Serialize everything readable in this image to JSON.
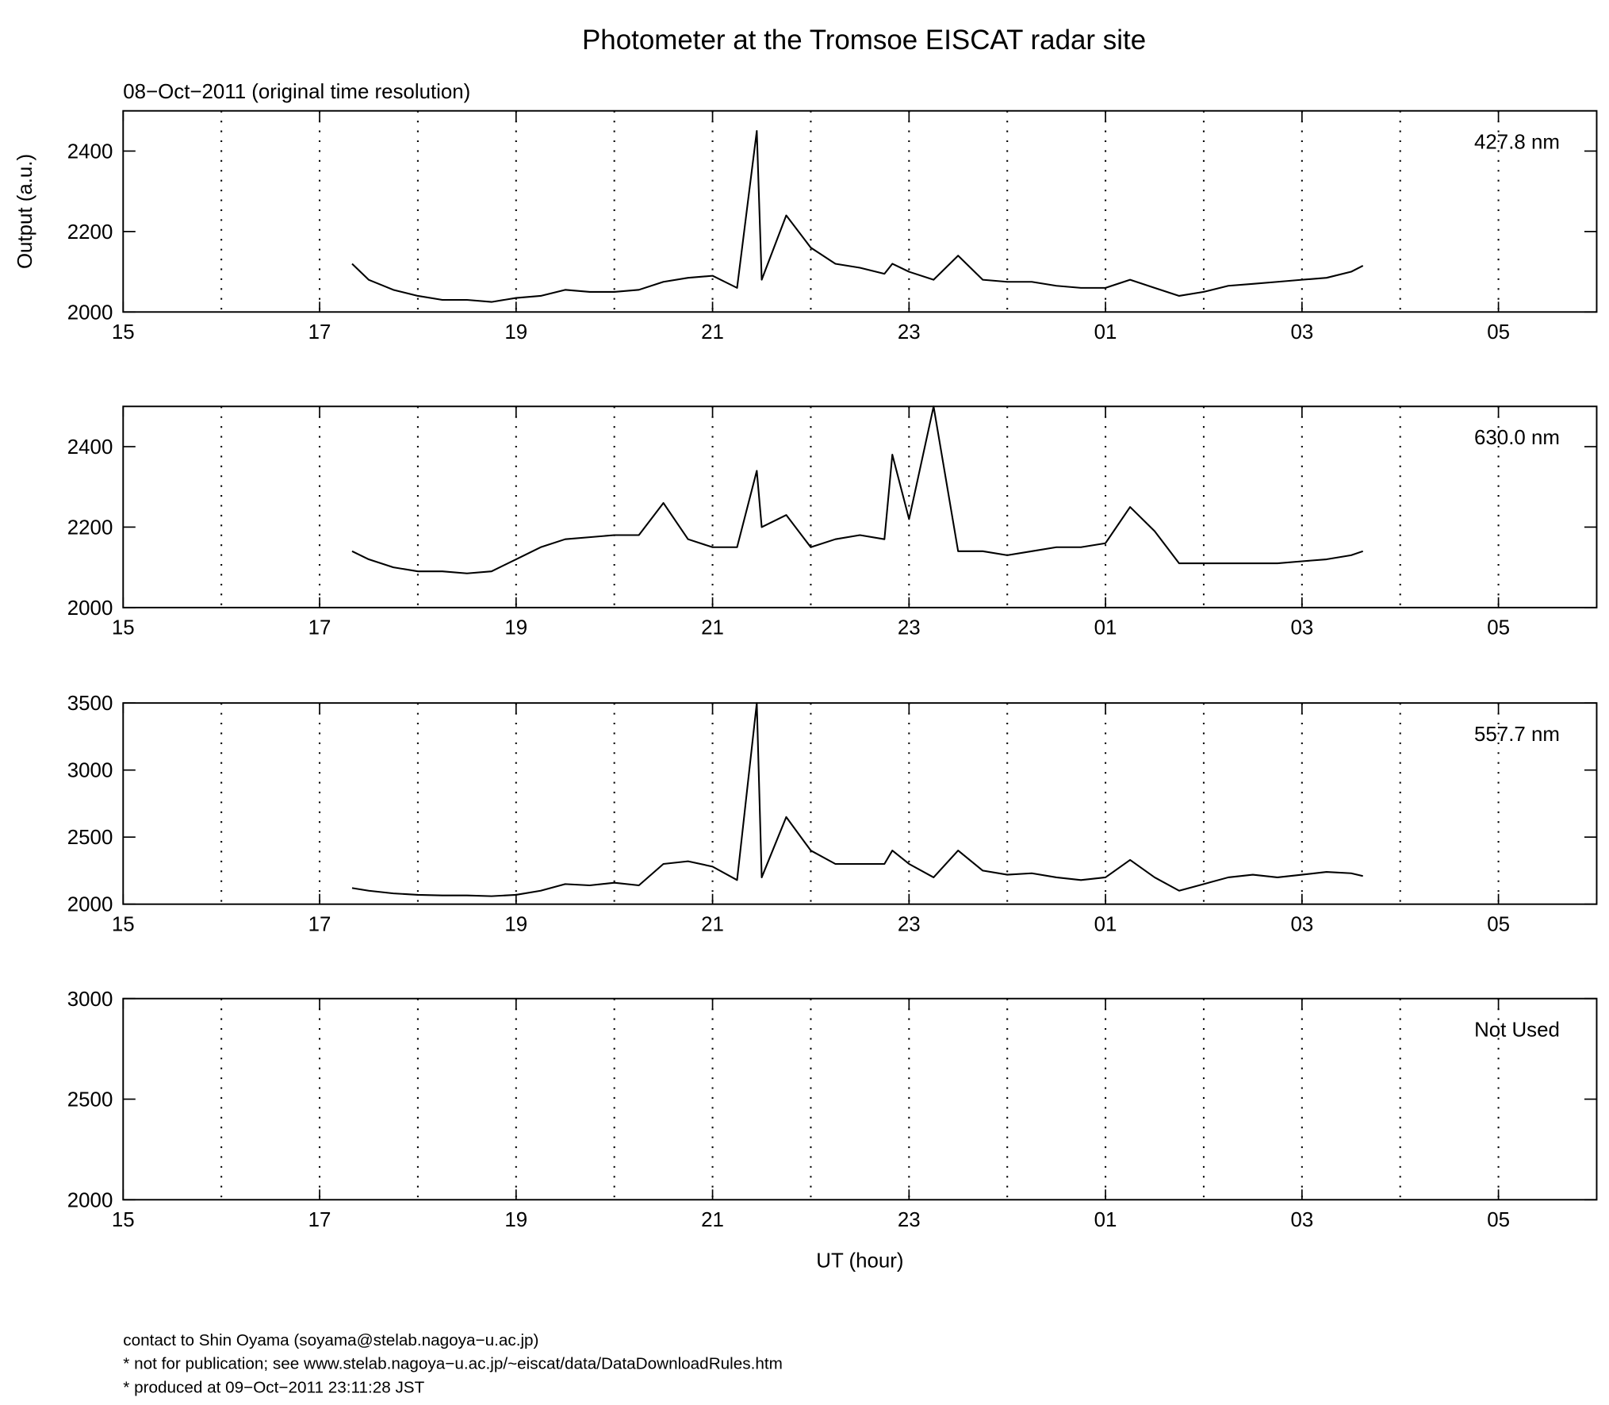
{
  "title": "Photometer at the Tromsoe EISCAT radar site",
  "subtitle": "08−Oct−2011 (original time resolution)",
  "footer": [
    "contact to Shin Oyama (soyama@stelab.nagoya−u.ac.jp)",
    "* not for publication; see www.stelab.nagoya−u.ac.jp/~eiscat/data/DataDownloadRules.htm",
    "* produced at 09−Oct−2011 23:11:28 JST"
  ],
  "chart_data": [
    {
      "type": "line",
      "label": "427.8 nm",
      "ylabel": "Output (a.u.)",
      "xlim": [
        15,
        30
      ],
      "xticks": [
        15,
        17,
        19,
        21,
        23,
        {
          "value": 25,
          "label": "01"
        },
        {
          "value": 27,
          "label": "03"
        },
        {
          "value": 29,
          "label": "05"
        }
      ],
      "xgrid": [
        16,
        17,
        18,
        19,
        20,
        21,
        22,
        23,
        24,
        25,
        26,
        27,
        28,
        29
      ],
      "grid_style": "dotted",
      "ylim": [
        2000,
        2500
      ],
      "yticks": [
        2000,
        2200,
        2400
      ],
      "x": [
        17.33,
        17.5,
        17.75,
        18,
        18.25,
        18.5,
        18.75,
        19,
        19.25,
        19.5,
        19.75,
        20,
        20.25,
        20.5,
        20.75,
        21,
        21.25,
        21.45,
        21.5,
        21.75,
        22,
        22.25,
        22.5,
        22.75,
        22.83,
        23,
        23.25,
        23.5,
        23.75,
        24,
        24.25,
        24.5,
        24.75,
        25,
        25.25,
        25.5,
        25.75,
        26,
        26.25,
        26.5,
        26.75,
        27,
        27.25,
        27.5,
        27.62
      ],
      "series": [
        {
          "color": "#000000",
          "values": [
            2120,
            2080,
            2055,
            2040,
            2030,
            2030,
            2025,
            2035,
            2040,
            2055,
            2050,
            2050,
            2055,
            2075,
            2085,
            2090,
            2060,
            2450,
            2080,
            2240,
            2160,
            2120,
            2110,
            2095,
            2120,
            2100,
            2080,
            2140,
            2080,
            2075,
            2075,
            2065,
            2060,
            2060,
            2080,
            2060,
            2040,
            2050,
            2065,
            2070,
            2075,
            2080,
            2085,
            2100,
            2115
          ]
        }
      ]
    },
    {
      "type": "line",
      "label": "630.0 nm",
      "xlim": [
        15,
        30
      ],
      "xticks": [
        15,
        17,
        19,
        21,
        23,
        {
          "value": 25,
          "label": "01"
        },
        {
          "value": 27,
          "label": "03"
        },
        {
          "value": 29,
          "label": "05"
        }
      ],
      "xgrid": [
        16,
        17,
        18,
        19,
        20,
        21,
        22,
        23,
        24,
        25,
        26,
        27,
        28,
        29
      ],
      "grid_style": "dotted",
      "ylim": [
        2000,
        2500
      ],
      "yticks": [
        2000,
        2200,
        2400
      ],
      "x": [
        17.33,
        17.5,
        17.75,
        18,
        18.25,
        18.5,
        18.75,
        19,
        19.25,
        19.5,
        19.75,
        20,
        20.25,
        20.5,
        20.75,
        21,
        21.25,
        21.45,
        21.5,
        21.75,
        22,
        22.25,
        22.5,
        22.75,
        22.83,
        23,
        23.25,
        23.5,
        23.75,
        24,
        24.25,
        24.5,
        24.75,
        25,
        25.25,
        25.5,
        25.75,
        26,
        26.25,
        26.5,
        26.75,
        27,
        27.25,
        27.5,
        27.62
      ],
      "series": [
        {
          "color": "#000000",
          "values": [
            2140,
            2120,
            2100,
            2090,
            2090,
            2085,
            2090,
            2120,
            2150,
            2170,
            2175,
            2180,
            2180,
            2260,
            2170,
            2150,
            2150,
            2340,
            2200,
            2230,
            2150,
            2170,
            2180,
            2170,
            2380,
            2220,
            2500,
            2140,
            2140,
            2130,
            2140,
            2150,
            2150,
            2160,
            2250,
            2190,
            2110,
            2110,
            2110,
            2110,
            2110,
            2115,
            2120,
            2130,
            2140
          ]
        }
      ]
    },
    {
      "type": "line",
      "label": "557.7 nm",
      "xlim": [
        15,
        30
      ],
      "xticks": [
        15,
        17,
        19,
        21,
        23,
        {
          "value": 25,
          "label": "01"
        },
        {
          "value": 27,
          "label": "03"
        },
        {
          "value": 29,
          "label": "05"
        }
      ],
      "xgrid": [
        16,
        17,
        18,
        19,
        20,
        21,
        22,
        23,
        24,
        25,
        26,
        27,
        28,
        29
      ],
      "grid_style": "dotted",
      "ylim": [
        2000,
        3500
      ],
      "yticks": [
        2000,
        2500,
        3000,
        3500
      ],
      "x": [
        17.33,
        17.5,
        17.75,
        18,
        18.25,
        18.5,
        18.75,
        19,
        19.25,
        19.5,
        19.75,
        20,
        20.25,
        20.5,
        20.75,
        21,
        21.25,
        21.45,
        21.5,
        21.75,
        22,
        22.25,
        22.5,
        22.75,
        22.83,
        23,
        23.25,
        23.5,
        23.75,
        24,
        24.25,
        24.5,
        24.75,
        25,
        25.25,
        25.5,
        25.75,
        26,
        26.25,
        26.5,
        26.75,
        27,
        27.25,
        27.5,
        27.62
      ],
      "series": [
        {
          "color": "#000000",
          "values": [
            2120,
            2100,
            2080,
            2070,
            2065,
            2065,
            2060,
            2070,
            2100,
            2150,
            2140,
            2160,
            2140,
            2300,
            2320,
            2280,
            2180,
            3500,
            2200,
            2650,
            2400,
            2300,
            2300,
            2300,
            2400,
            2300,
            2200,
            2400,
            2250,
            2220,
            2230,
            2200,
            2180,
            2200,
            2330,
            2200,
            2100,
            2150,
            2200,
            2220,
            2200,
            2220,
            2240,
            2230,
            2210
          ]
        }
      ]
    },
    {
      "type": "line",
      "label": "Not Used",
      "xlabel": "UT (hour)",
      "xlim": [
        15,
        30
      ],
      "xticks": [
        15,
        17,
        19,
        21,
        23,
        {
          "value": 25,
          "label": "01"
        },
        {
          "value": 27,
          "label": "03"
        },
        {
          "value": 29,
          "label": "05"
        }
      ],
      "xgrid": [
        16,
        17,
        18,
        19,
        20,
        21,
        22,
        23,
        24,
        25,
        26,
        27,
        28,
        29
      ],
      "grid_style": "dotted",
      "ylim": [
        2000,
        3000
      ],
      "yticks": [
        2000,
        2500,
        3000
      ],
      "x": [],
      "series": []
    }
  ]
}
